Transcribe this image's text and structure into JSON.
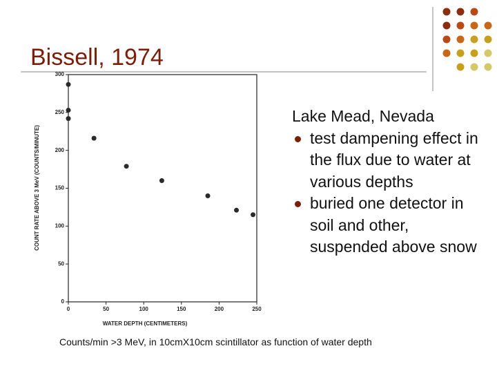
{
  "slide": {
    "title": "Bissell, 1974",
    "heading": "Lake Mead, Nevada",
    "bullets": [
      "test dampening effect in the flux due to water at various depths",
      "buried one detector in soil and other, suspended above snow"
    ],
    "caption": "Counts/min >3 MeV, in 10cmX10cm scintillator as function of water depth"
  },
  "chart_data": {
    "type": "scatter",
    "x_label": "WATER DEPTH (CENTIMETERS)",
    "y_label": "COUNT RATE ABOVE 3 MeV (COUNTS/MINUTE)",
    "x": [
      0,
      0,
      0,
      34,
      77,
      124,
      185,
      223,
      245
    ],
    "values": [
      287,
      253,
      242,
      216,
      179,
      160,
      140,
      121,
      115
    ],
    "color": "#2a2a2a",
    "xlim": [
      0,
      250
    ],
    "xticks": [
      0,
      50,
      100,
      150,
      200,
      250
    ],
    "ylim": [
      0,
      300
    ],
    "yticks": [
      0,
      50,
      100,
      150,
      200,
      250,
      300
    ]
  }
}
